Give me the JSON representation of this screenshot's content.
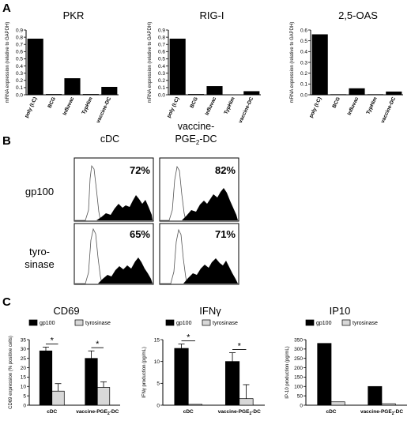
{
  "panels": {
    "A": "A",
    "B": "B",
    "C": "C"
  },
  "chart_data": [
    {
      "type": "bar",
      "title": "PKR",
      "ylabel": "mRNA expression (relative to GAPDH)",
      "categories": [
        "poly (I:C)",
        "BCG",
        "Influvac",
        "TypHim",
        "vaccine-DC"
      ],
      "values": [
        0.78,
        0.01,
        0.23,
        0.01,
        0.11
      ],
      "ylim": [
        0,
        0.9
      ],
      "yticks": [
        "0.0",
        "0.1",
        "0.2",
        "0.3",
        "0.4",
        "0.5",
        "0.6",
        "0.7",
        "0.8",
        "0.9"
      ]
    },
    {
      "type": "bar",
      "title": "RIG-I",
      "ylabel": "mRNA expression (relative to GAPDH)",
      "categories": [
        "poly (I:C)",
        "BCG",
        "Influvac",
        "TypHim",
        "vaccine-DC"
      ],
      "values": [
        0.78,
        0.01,
        0.12,
        0.005,
        0.05
      ],
      "ylim": [
        0,
        0.9
      ],
      "yticks": [
        "0.0",
        "0.1",
        "0.2",
        "0.3",
        "0.4",
        "0.5",
        "0.6",
        "0.7",
        "0.8",
        "0.9"
      ]
    },
    {
      "type": "bar",
      "title": "2,5-OAS",
      "ylabel": "mRNA expression (relative to GAPDH)",
      "categories": [
        "poly (I:C)",
        "BCG",
        "Influvac",
        "TypHim",
        "vaccine-DC"
      ],
      "values": [
        0.56,
        0.005,
        0.06,
        0.005,
        0.03
      ],
      "ylim": [
        0,
        0.6
      ],
      "yticks": [
        "0.0",
        "0.1",
        "0.2",
        "0.3",
        "0.4",
        "0.5",
        "0.6"
      ]
    },
    {
      "type": "histogram-grid",
      "columns": [
        "cDC",
        "vaccine-PGE2-DC"
      ],
      "rows": [
        "gp100",
        "tyrosinase"
      ],
      "percentages": [
        [
          "72%",
          "82%"
        ],
        [
          "65%",
          "71%"
        ]
      ]
    },
    {
      "type": "bar",
      "title": "CD69",
      "ylabel": "CD69 expression (% positive cells)",
      "categories": [
        "cDC",
        "vaccine-PGE2-DC"
      ],
      "series": [
        {
          "name": "gp100",
          "values": [
            29,
            25
          ],
          "errors": [
            2,
            4
          ]
        },
        {
          "name": "tyrosinase",
          "values": [
            7.5,
            9.5
          ],
          "errors": [
            4,
            3
          ]
        }
      ],
      "ylim": [
        0,
        35
      ],
      "yticks": [
        "0",
        "5",
        "10",
        "15",
        "20",
        "25",
        "30",
        "35"
      ],
      "significance": [
        "*",
        "*"
      ]
    },
    {
      "type": "bar",
      "title": "IFNγ",
      "ylabel": "IFNγ production (pg/mL)",
      "categories": [
        "cDC",
        "vaccine-PGE2-DC"
      ],
      "series": [
        {
          "name": "gp100",
          "values": [
            13,
            10
          ],
          "errors": [
            1,
            2
          ]
        },
        {
          "name": "tyrosinase",
          "values": [
            0.2,
            1.5
          ],
          "errors": [
            0,
            3.2
          ]
        }
      ],
      "ylim": [
        0,
        15
      ],
      "yticks": [
        "0",
        "5",
        "10",
        "15"
      ],
      "significance": [
        "*",
        "*"
      ]
    },
    {
      "type": "bar",
      "title": "IP10",
      "ylabel": "IP-10 production (pg/mL)",
      "categories": [
        "cDC",
        "vaccine-PGE2-DC"
      ],
      "series": [
        {
          "name": "gp100",
          "values": [
            330,
            100
          ],
          "errors": [
            0,
            0
          ]
        },
        {
          "name": "tyrosinase",
          "values": [
            18,
            8
          ],
          "errors": [
            0,
            0
          ]
        }
      ],
      "ylim": [
        0,
        350
      ],
      "yticks": [
        "0",
        "50",
        "100",
        "150",
        "200",
        "250",
        "300",
        "350"
      ],
      "significance": []
    }
  ],
  "colors": {
    "bar": "#000000",
    "gp100": "#000000",
    "tyrosinase": "#d8d8d8"
  }
}
